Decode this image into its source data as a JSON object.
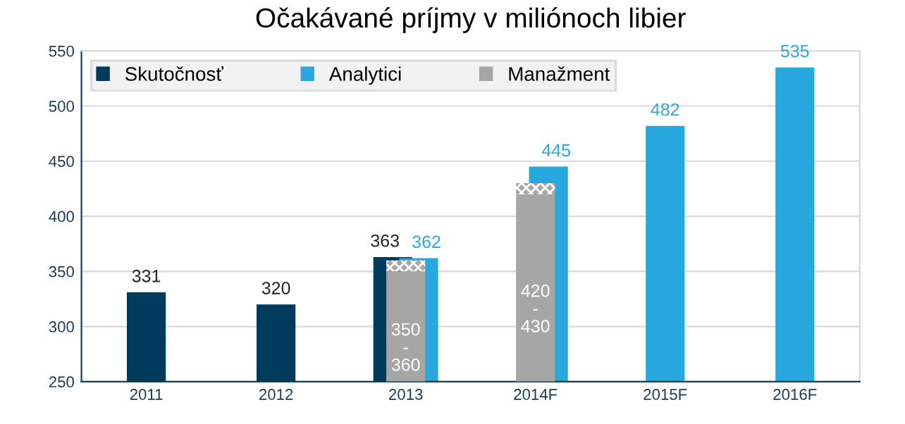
{
  "chart_data": {
    "type": "bar",
    "title": "Očakávané príjmy v miliónoch libier",
    "categories": [
      "2011",
      "2012",
      "2013",
      "2014F",
      "2015F",
      "2016F"
    ],
    "series": [
      {
        "name": "Skutočnosť",
        "color": "#003a5d",
        "values": [
          331,
          320,
          363,
          null,
          null,
          null
        ],
        "value_labels": [
          "331",
          "320",
          "363",
          null,
          null,
          null
        ]
      },
      {
        "name": "Analytici",
        "color": "#29a8df",
        "values": [
          null,
          null,
          362,
          445,
          482,
          535
        ],
        "value_labels": [
          null,
          null,
          "362",
          "445",
          "482",
          "535"
        ]
      },
      {
        "name": "Manažment",
        "color": "#a6a6a6",
        "values": [
          null,
          null,
          350,
          420,
          null,
          null
        ],
        "value_labels": [
          null,
          null,
          "350\n-\n360",
          "420\n-\n430",
          null,
          null
        ]
      },
      {
        "color": "#a6a6a6",
        "base": [
          null,
          null,
          350,
          420,
          null,
          null
        ],
        "values": [
          null,
          null,
          10,
          10,
          null,
          null
        ]
      }
    ],
    "ylim": [
      250,
      550
    ],
    "yticks": [
      250,
      300,
      350,
      400,
      450,
      500,
      550
    ],
    "grid": "y",
    "legend": "top left"
  }
}
